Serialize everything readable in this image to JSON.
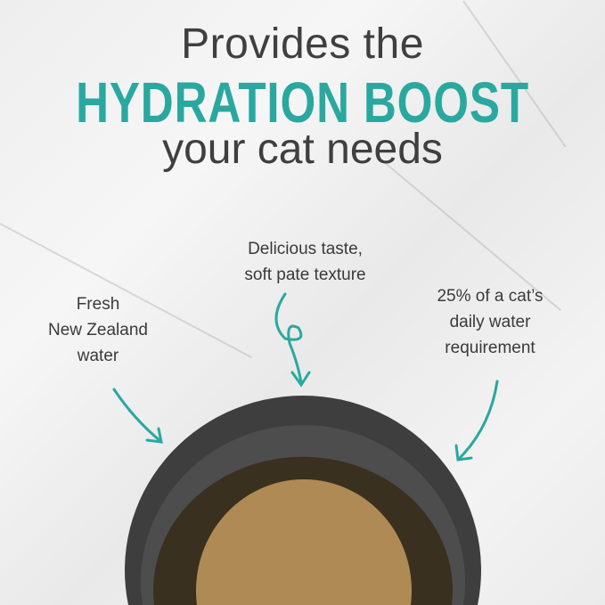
{
  "headline": {
    "line1": "Provides the",
    "line2": "HYDRATION BOOST",
    "line3": "your cat needs"
  },
  "callouts": [
    {
      "lines": [
        "Fresh",
        "New Zealand",
        "water"
      ]
    },
    {
      "lines": [
        "Delicious taste,",
        "soft pate texture"
      ]
    },
    {
      "lines": [
        "25% of a cat’s",
        "daily water",
        "requirement"
      ]
    }
  ],
  "colors": {
    "accent": "#2aa8a0",
    "text": "#3f3f3f",
    "bowl": "#4a4a4a",
    "pate": "#b08a55"
  },
  "icons": [
    "arrow-curved-icon",
    "arrow-loop-icon",
    "arrow-curved-icon"
  ]
}
